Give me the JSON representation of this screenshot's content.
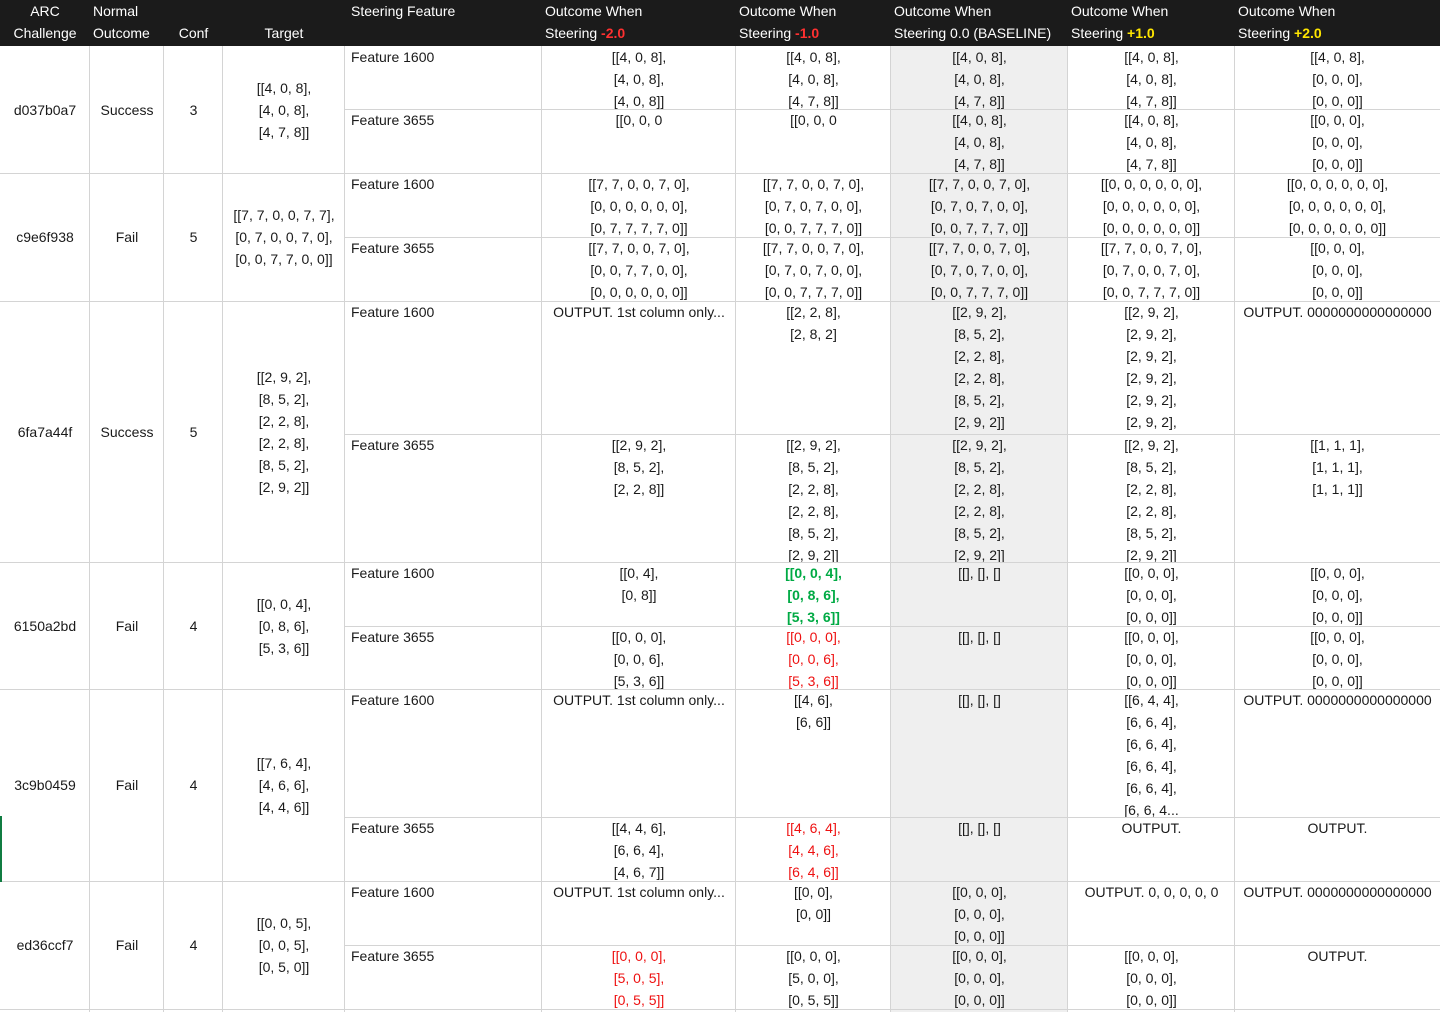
{
  "colors": {
    "negative": "#ff3030",
    "positive": "#ffe600",
    "header_bg": "#1b1b1b",
    "red_text": "#ee1111",
    "green_text": "#00aa44"
  },
  "header": {
    "challenge": [
      "ARC",
      "Challenge"
    ],
    "normal": [
      "Normal",
      "Outcome"
    ],
    "conf": "Conf",
    "target": "Target",
    "feature": "Steering Feature",
    "s_m2": {
      "l1": "Outcome When",
      "l2a": "Steering ",
      "val": "-2.0"
    },
    "s_m1": {
      "l1": "Outcome When",
      "l2a": "Steering ",
      "val": "-1.0"
    },
    "s_0": {
      "l1": "Outcome When",
      "l2": "Steering 0.0 (BASELINE)"
    },
    "s_p1": {
      "l1": "Outcome When",
      "l2a": "Steering ",
      "val": "+1.0"
    },
    "s_p2": {
      "l1": "Outcome When",
      "l2a": "Steering ",
      "val": "+2.0"
    }
  },
  "rows": [
    {
      "challenge": "d037b0a7",
      "outcome": "Success",
      "conf": "3",
      "target": [
        "[[4, 0, 8],",
        "[4, 0, 8],",
        "[4, 7, 8]]"
      ],
      "features": [
        {
          "name": "Feature 1600",
          "m2": {
            "lines": [
              "[[4, 0, 8],",
              "[4, 0, 8],",
              "[4, 0, 8]]"
            ]
          },
          "m1": {
            "lines": [
              "[[4, 0, 8],",
              "[4, 0, 8],",
              "[4, 7, 8]]"
            ]
          },
          "z": {
            "lines": [
              "[[4, 0, 8],",
              "[4, 0, 8],",
              "[4, 7, 8]]"
            ]
          },
          "p1": {
            "lines": [
              "[[4, 0, 8],",
              "[4, 0, 8],",
              "[4, 7, 8]]"
            ]
          },
          "p2": {
            "lines": [
              "[[4, 0, 8],",
              "[0, 0, 0],",
              "[0, 0, 0]]"
            ]
          }
        },
        {
          "name": "Feature 3655",
          "m2": {
            "lines": [
              "[[0, 0, 0"
            ]
          },
          "m1": {
            "lines": [
              "[[0, 0, 0"
            ]
          },
          "z": {
            "lines": [
              "[[4, 0, 8],",
              "[4, 0, 8],",
              "[4, 7, 8]]"
            ]
          },
          "p1": {
            "lines": [
              "[[4, 0, 8],",
              "[4, 0, 8],",
              "[4, 7, 8]]"
            ]
          },
          "p2": {
            "lines": [
              "[[0, 0, 0],",
              "[0, 0, 0],",
              "[0, 0, 0]]"
            ]
          }
        }
      ]
    },
    {
      "challenge": "c9e6f938",
      "outcome": "Fail",
      "conf": "5",
      "target": [
        "[[7, 7, 0, 0, 7, 7],",
        "[0, 7, 0, 0, 7, 0],",
        "[0, 0, 7, 7, 0, 0]]"
      ],
      "features": [
        {
          "name": "Feature 1600",
          "m2": {
            "lines": [
              "[[7, 7, 0, 0, 7, 0],",
              "[0, 0, 0, 0, 0, 0],",
              "[0, 7, 7, 7, 7, 0]]"
            ]
          },
          "m1": {
            "lines": [
              "[[7, 7, 0, 0, 7, 0],",
              "[0, 7, 0, 7, 0, 0],",
              "[0, 0, 7, 7, 7, 0]]"
            ]
          },
          "z": {
            "lines": [
              "[[7, 7, 0, 0, 7, 0],",
              "[0, 7, 0, 7, 0, 0],",
              "[0, 0, 7, 7, 7, 0]]"
            ]
          },
          "p1": {
            "lines": [
              "[[0, 0, 0, 0, 0, 0],",
              "[0, 0, 0, 0, 0, 0],",
              "[0, 0, 0, 0, 0, 0]]"
            ]
          },
          "p2": {
            "lines": [
              "[[0, 0, 0, 0, 0, 0],",
              "[0, 0, 0, 0, 0, 0],",
              "[0, 0, 0, 0, 0, 0]]"
            ]
          }
        },
        {
          "name": "Feature 3655",
          "m2": {
            "lines": [
              "[[7, 7, 0, 0, 7, 0],",
              "[0, 0, 7, 7, 0, 0],",
              "[0, 0, 0, 0, 0, 0]]"
            ]
          },
          "m1": {
            "lines": [
              "[[7, 7, 0, 0, 7, 0],",
              "[0, 7, 0, 7, 0, 0],",
              "[0, 0, 7, 7, 7, 0]]"
            ]
          },
          "z": {
            "lines": [
              "[[7, 7, 0, 0, 7, 0],",
              "[0, 7, 0, 7, 0, 0],",
              "[0, 0, 7, 7, 7, 0]]"
            ]
          },
          "p1": {
            "lines": [
              "[[7, 7, 0, 0, 7, 0],",
              "[0, 7, 0, 0, 7, 0],",
              "[0, 0, 7, 7, 7, 0]]"
            ]
          },
          "p2": {
            "lines": [
              "[[0, 0, 0],",
              "[0, 0, 0],",
              "[0, 0, 0]]"
            ]
          }
        }
      ]
    },
    {
      "challenge": "6fa7a44f",
      "outcome": "Success",
      "conf": "5",
      "target": [
        "[[2, 9, 2],",
        "[8, 5, 2],",
        "[2, 2, 8],",
        "[2, 2, 8],",
        "[8, 5, 2],",
        "[2, 9, 2]]"
      ],
      "features": [
        {
          "name": "Feature 1600",
          "m2": {
            "lines": [
              "OUTPUT. 1st column only..."
            ]
          },
          "m1": {
            "lines": [
              "[[2, 2, 8],",
              "[2, 8, 2]"
            ]
          },
          "z": {
            "lines": [
              "[[2, 9, 2],",
              "[8, 5, 2],",
              "[2, 2, 8],",
              "[2, 2, 8],",
              "[8, 5, 2],",
              "[2, 9, 2]]"
            ]
          },
          "p1": {
            "lines": [
              "[[2, 9, 2],",
              "[2, 9, 2],",
              "[2, 9, 2],",
              "[2, 9, 2],",
              "[2, 9, 2],",
              "[2, 9, 2],"
            ]
          },
          "p2": {
            "lines": [
              "OUTPUT. 0000000000000000"
            ]
          }
        },
        {
          "name": "Feature 3655",
          "m2": {
            "lines": [
              "[[2, 9, 2],",
              "[8, 5, 2],",
              "[2, 2, 8]]"
            ]
          },
          "m1": {
            "lines": [
              "[[2, 9, 2],",
              "[8, 5, 2],",
              "[2, 2, 8],",
              "[2, 2, 8],",
              "[8, 5, 2],",
              "[2, 9, 2]]"
            ]
          },
          "z": {
            "lines": [
              "[[2, 9, 2],",
              "[8, 5, 2],",
              "[2, 2, 8],",
              "[2, 2, 8],",
              "[8, 5, 2],",
              "[2, 9, 2]]"
            ]
          },
          "p1": {
            "lines": [
              "[[2, 9, 2],",
              "[8, 5, 2],",
              "[2, 2, 8],",
              "[2, 2, 8],",
              "[8, 5, 2],",
              "[2, 9, 2]]"
            ]
          },
          "p2": {
            "lines": [
              "[[1, 1, 1],",
              "[1, 1, 1],",
              "[1, 1, 1]]"
            ]
          }
        }
      ]
    },
    {
      "challenge": "6150a2bd",
      "outcome": "Fail",
      "conf": "4",
      "target": [
        "[[0, 0, 4],",
        "[0, 8, 6],",
        "[5, 3, 6]]"
      ],
      "features": [
        {
          "name": "Feature 1600",
          "m2": {
            "lines": [
              "[[0, 4],",
              "[0, 8]]"
            ]
          },
          "m1": {
            "lines": [
              "[[0, 0, 4],",
              "[0, 8, 6],",
              "[5, 3, 6]]"
            ],
            "style": "green"
          },
          "z": {
            "lines": [
              "[[], [], []"
            ]
          },
          "p1": {
            "lines": [
              "[[0, 0, 0],",
              "[0, 0, 0],",
              "[0, 0, 0]]"
            ]
          },
          "p2": {
            "lines": [
              "[[0, 0, 0],",
              "[0, 0, 0],",
              "[0, 0, 0]]"
            ]
          }
        },
        {
          "name": "Feature 3655",
          "m2": {
            "lines": [
              "[[0, 0, 0],",
              "[0, 0, 6],",
              "[5, 3, 6]]"
            ]
          },
          "m1": {
            "lines": [
              "[[0, 0, 0],",
              "[0, 0, 6],",
              "[5, 3, 6]]"
            ],
            "style": "red"
          },
          "z": {
            "lines": [
              "[[], [], []"
            ]
          },
          "p1": {
            "lines": [
              "[[0, 0, 0],",
              "[0, 0, 0],",
              "[0, 0, 0]]"
            ]
          },
          "p2": {
            "lines": [
              "[[0, 0, 0],",
              "[0, 0, 0],",
              "[0, 0, 0]]"
            ]
          }
        }
      ]
    },
    {
      "challenge": "3c9b0459",
      "outcome": "Fail",
      "conf": "4",
      "target": [
        "[[7, 6, 4],",
        "[4, 6, 6],",
        "[4, 4, 6]]"
      ],
      "features": [
        {
          "name": "Feature 1600",
          "m2": {
            "lines": [
              "OUTPUT. 1st column only..."
            ]
          },
          "m1": {
            "lines": [
              "[[4, 6],",
              "[6, 6]]"
            ]
          },
          "z": {
            "lines": [
              "[[], [], []"
            ]
          },
          "p1": {
            "lines": [
              "[[6, 4, 4],",
              "[6, 6, 4],",
              "[6, 6, 4],",
              "[6, 6, 4],",
              "[6, 6, 4],",
              "[6, 6, 4..."
            ]
          },
          "p2": {
            "lines": [
              "OUTPUT. 0000000000000000"
            ]
          }
        },
        {
          "name": "Feature 3655",
          "m2": {
            "lines": [
              "[[4, 4, 6],",
              "[6, 6, 4],",
              "[4, 6, 7]]"
            ]
          },
          "m1": {
            "lines": [
              "[[4, 6, 4],",
              "[4, 4, 6],",
              "[6, 4, 6]]"
            ],
            "style": "red"
          },
          "z": {
            "lines": [
              "[[], [], []"
            ]
          },
          "p1": {
            "lines": [
              "OUTPUT."
            ]
          },
          "p2": {
            "lines": [
              "OUTPUT."
            ]
          }
        }
      ]
    },
    {
      "challenge": "ed36ccf7",
      "outcome": "Fail",
      "conf": "4",
      "target": [
        "[[0, 0, 5],",
        "[0, 0, 5],",
        "[0, 5, 0]]"
      ],
      "features": [
        {
          "name": "Feature 1600",
          "m2": {
            "lines": [
              "OUTPUT. 1st column only..."
            ]
          },
          "m1": {
            "lines": [
              "[[0, 0],",
              "[0, 0]]"
            ]
          },
          "z": {
            "lines": [
              "[[0, 0, 0],",
              "[0, 0, 0],",
              "[0, 0, 0]]"
            ]
          },
          "p1": {
            "lines": [
              "OUTPUT. 0, 0, 0, 0, 0"
            ]
          },
          "p2": {
            "lines": [
              "OUTPUT. 0000000000000000"
            ]
          }
        },
        {
          "name": "Feature 3655",
          "m2": {
            "lines": [
              "[[0, 0, 0],",
              "[5, 0, 5],",
              "[0, 5, 5]]"
            ],
            "style": "red"
          },
          "m1": {
            "lines": [
              "[[0, 0, 0],",
              "[5, 0, 0],",
              "[0, 5, 5]]"
            ]
          },
          "z": {
            "lines": [
              "[[0, 0, 0],",
              "[0, 0, 0],",
              "[0, 0, 0]]"
            ]
          },
          "p1": {
            "lines": [
              "[[0, 0, 0],",
              "[0, 0, 0],",
              "[0, 0, 0]]"
            ]
          },
          "p2": {
            "lines": [
              "OUTPUT."
            ]
          }
        }
      ]
    }
  ]
}
